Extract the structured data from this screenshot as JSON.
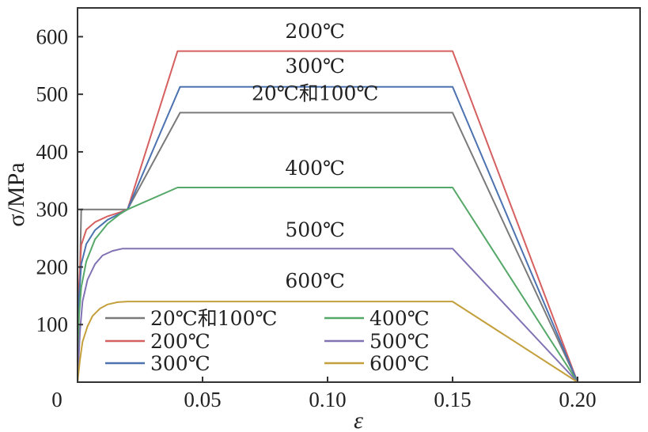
{
  "chart_data": {
    "type": "line",
    "title": "",
    "xlabel": "ε",
    "ylabel": "σ/MPa",
    "xlim": [
      0,
      0.225
    ],
    "ylim": [
      0,
      650
    ],
    "origin_label": "0",
    "x_ticks": [
      {
        "value": 0.05,
        "label": "0.05"
      },
      {
        "value": 0.1,
        "label": "0.10"
      },
      {
        "value": 0.15,
        "label": "0.15"
      },
      {
        "value": 0.2,
        "label": "0.20"
      }
    ],
    "y_ticks": [
      {
        "value": 100,
        "label": "100"
      },
      {
        "value": 200,
        "label": "200"
      },
      {
        "value": 300,
        "label": "300"
      },
      {
        "value": 400,
        "label": "400"
      },
      {
        "value": 500,
        "label": "500"
      },
      {
        "value": 600,
        "label": "600"
      }
    ],
    "grid": false,
    "legend_position": "bottom-left",
    "series": [
      {
        "name": "20℃和100℃",
        "color": "#7a7a7a",
        "points": [
          [
            0,
            0
          ],
          [
            0.0015,
            300
          ],
          [
            0.02,
            300
          ],
          [
            0.041,
            468
          ],
          [
            0.15,
            468
          ],
          [
            0.2,
            0
          ]
        ]
      },
      {
        "name": "200℃",
        "color": "#d65f5f",
        "points": [
          [
            0,
            0
          ],
          [
            0.0005,
            160
          ],
          [
            0.0015,
            238
          ],
          [
            0.0035,
            265
          ],
          [
            0.007,
            278
          ],
          [
            0.012,
            288
          ],
          [
            0.017,
            295
          ],
          [
            0.02,
            300
          ],
          [
            0.04,
            575
          ],
          [
            0.15,
            575
          ],
          [
            0.2,
            0
          ]
        ]
      },
      {
        "name": "300℃",
        "color": "#4c72b0",
        "points": [
          [
            0,
            0
          ],
          [
            0.0005,
            140
          ],
          [
            0.0015,
            205
          ],
          [
            0.0035,
            240
          ],
          [
            0.007,
            264
          ],
          [
            0.012,
            282
          ],
          [
            0.017,
            293
          ],
          [
            0.02,
            300
          ],
          [
            0.041,
            513
          ],
          [
            0.15,
            513
          ],
          [
            0.2,
            0
          ]
        ]
      },
      {
        "name": "400℃",
        "color": "#55a868",
        "points": [
          [
            0,
            0
          ],
          [
            0.0005,
            110
          ],
          [
            0.0015,
            165
          ],
          [
            0.0035,
            210
          ],
          [
            0.007,
            248
          ],
          [
            0.012,
            275
          ],
          [
            0.017,
            292
          ],
          [
            0.02,
            300
          ],
          [
            0.04,
            338
          ],
          [
            0.15,
            338
          ],
          [
            0.2,
            0
          ]
        ]
      },
      {
        "name": "500℃",
        "color": "#8172b3",
        "points": [
          [
            0,
            0
          ],
          [
            0.001,
            90
          ],
          [
            0.002,
            140
          ],
          [
            0.004,
            178
          ],
          [
            0.007,
            205
          ],
          [
            0.01,
            220
          ],
          [
            0.014,
            228
          ],
          [
            0.018,
            232
          ],
          [
            0.15,
            232
          ],
          [
            0.2,
            0
          ]
        ]
      },
      {
        "name": "600℃",
        "color": "#c4a03c",
        "points": [
          [
            0,
            0
          ],
          [
            0.001,
            40
          ],
          [
            0.002,
            70
          ],
          [
            0.004,
            97
          ],
          [
            0.006,
            115
          ],
          [
            0.009,
            128
          ],
          [
            0.012,
            135
          ],
          [
            0.016,
            139
          ],
          [
            0.02,
            140
          ],
          [
            0.15,
            140
          ],
          [
            0.2,
            0
          ]
        ]
      }
    ],
    "annotations": [
      {
        "text": "200℃",
        "x": 0.095,
        "y": 598
      },
      {
        "text": "300℃",
        "x": 0.095,
        "y": 537
      },
      {
        "text": "20℃和100℃",
        "x": 0.095,
        "y": 490
      },
      {
        "text": "400℃",
        "x": 0.095,
        "y": 360
      },
      {
        "text": "500℃",
        "x": 0.095,
        "y": 253
      },
      {
        "text": "600℃",
        "x": 0.095,
        "y": 164
      }
    ]
  }
}
